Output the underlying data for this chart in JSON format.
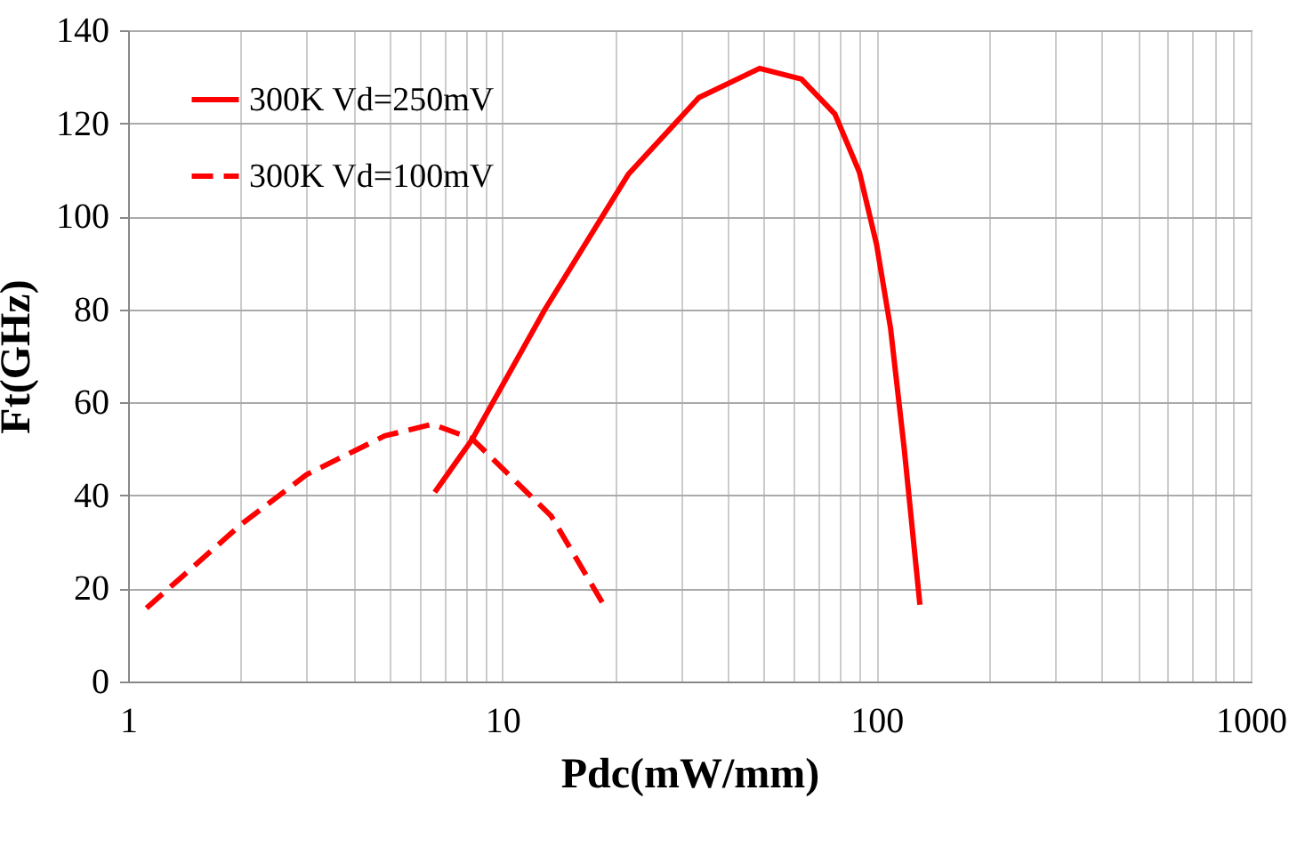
{
  "chart_data": {
    "type": "line",
    "xlabel": "Pdc(mW/mm)",
    "ylabel": "Ft(GHz)",
    "log": "x",
    "xlim": [
      1,
      1000
    ],
    "ylim": [
      0,
      140
    ],
    "xticks": [
      1,
      {
        "value": 2,
        "label": null
      },
      {
        "value": 3,
        "label": null
      },
      {
        "value": 4,
        "label": null
      },
      {
        "value": 5,
        "label": null
      },
      {
        "value": 6,
        "label": null
      },
      {
        "value": 7,
        "label": null
      },
      {
        "value": 8,
        "label": null
      },
      {
        "value": 9,
        "label": null
      },
      10,
      {
        "value": 20,
        "label": null
      },
      {
        "value": 30,
        "label": null
      },
      {
        "value": 40,
        "label": null
      },
      {
        "value": 50,
        "label": null
      },
      {
        "value": 60,
        "label": null
      },
      {
        "value": 70,
        "label": null
      },
      {
        "value": 80,
        "label": null
      },
      {
        "value": 90,
        "label": null
      },
      100,
      {
        "value": 200,
        "label": null
      },
      {
        "value": 300,
        "label": null
      },
      {
        "value": 400,
        "label": null
      },
      {
        "value": 500,
        "label": null
      },
      {
        "value": 600,
        "label": null
      },
      {
        "value": 700,
        "label": null
      },
      {
        "value": 800,
        "label": null
      },
      {
        "value": 900,
        "label": null
      },
      1000
    ],
    "yticks": [
      0,
      20,
      40,
      60,
      80,
      100,
      120,
      140
    ],
    "grid": true,
    "legend": "top left",
    "marker": "none",
    "series": [
      {
        "name": "300K Vd=250mV",
        "color": "#ff0000",
        "line_style": "solid",
        "x": [
          6.6,
          8.3,
          13,
          21.7,
          33.5,
          48.7,
          63,
          77.4,
          90,
          100,
          109,
          118.6,
          130.6
        ],
        "values": [
          40.7,
          52,
          80,
          109,
          125.5,
          131.8,
          129.5,
          122,
          109.5,
          94,
          76,
          50,
          16.5
        ]
      },
      {
        "name": "300K Vd=100mV",
        "color": "#ff0000",
        "line_style": "dashed",
        "x": [
          1.12,
          1.37,
          2,
          3,
          4.85,
          6.5,
          8.3,
          13.5,
          18.5
        ],
        "values": [
          15.8,
          22,
          33.7,
          44.5,
          52.8,
          55.3,
          52.2,
          35.6,
          17
        ]
      }
    ]
  }
}
